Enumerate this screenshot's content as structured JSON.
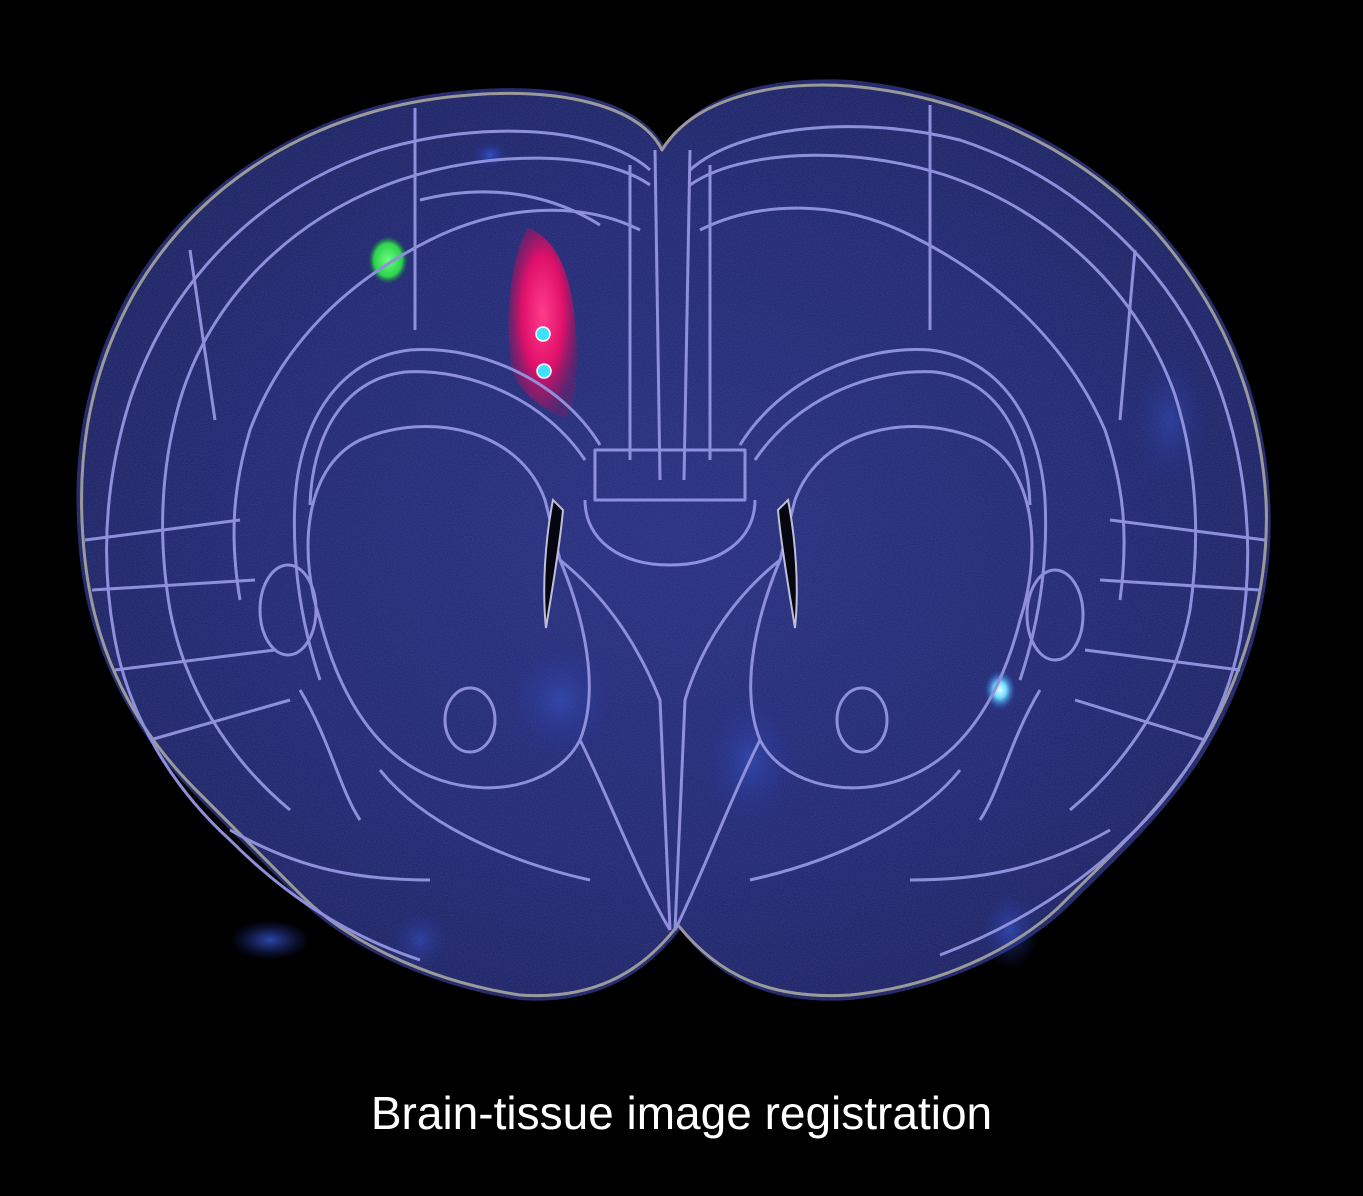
{
  "caption": "Brain-tissue image registration",
  "colors": {
    "background": "#000000",
    "tissue_stain": "#2a2f8a",
    "atlas_outline": "#8f90dc",
    "brain_border": "#9a9a9a",
    "injection_site": "#e0106a",
    "fluorescent_spot_green": "#35e060",
    "fluorescent_spot_cyan": "#6fd8ff",
    "probe_marker": "#3fe0ff"
  }
}
